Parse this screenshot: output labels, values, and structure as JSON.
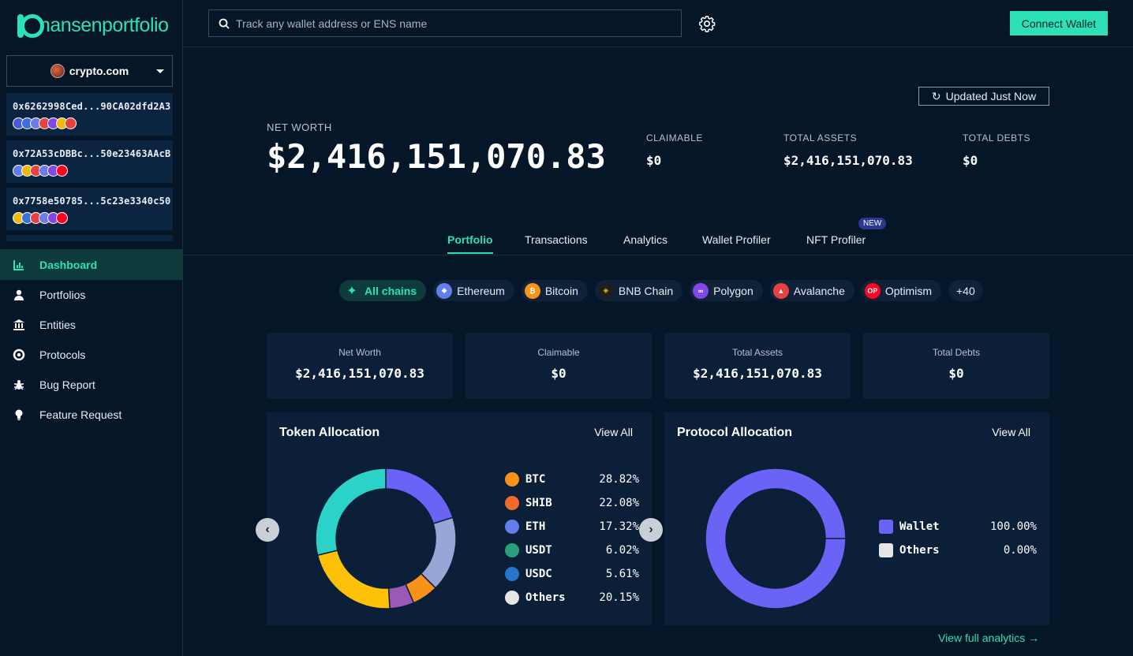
{
  "brand": {
    "name_a": "nansen",
    "name_b": "portfolio"
  },
  "entity": {
    "name": "crypto.com"
  },
  "wallets": [
    {
      "address": "0x6262998Ced...90CA02dfd2A3",
      "chains": [
        "#4a5ad6",
        "#3b6fe0",
        "#6b7be8",
        "#e84142",
        "#8247e5",
        "#f0b90b",
        "#e84142"
      ]
    },
    {
      "address": "0x72A53cDBBc...50e23463AAcB",
      "chains": [
        "#627eea",
        "#f0b90b",
        "#e84142",
        "#6b7be8",
        "#8247e5",
        "#ff0420"
      ]
    },
    {
      "address": "0x7758e50785...5c23e3340c50",
      "chains": [
        "#f0b90b",
        "#3b6fe0",
        "#e84142",
        "#6b7be8",
        "#8247e5",
        "#ff0420"
      ]
    }
  ],
  "nav": [
    {
      "label": "Dashboard",
      "icon": "chart-icon"
    },
    {
      "label": "Portfolios",
      "icon": "user-icon"
    },
    {
      "label": "Entities",
      "icon": "bank-icon"
    },
    {
      "label": "Protocols",
      "icon": "lifebuoy-icon"
    },
    {
      "label": "Bug Report",
      "icon": "bug-icon"
    },
    {
      "label": "Feature Request",
      "icon": "bulb-icon"
    }
  ],
  "search": {
    "placeholder": "Track any wallet address or ENS name"
  },
  "connect_label": "Connect Wallet",
  "updated_label": "Updated Just Now",
  "header": {
    "net_worth_label": "NET WORTH",
    "net_worth": "$2,416,151,070.83",
    "claimable_label": "CLAIMABLE",
    "claimable": "$0",
    "total_assets_label": "TOTAL ASSETS",
    "total_assets": "$2,416,151,070.83",
    "total_debts_label": "TOTAL DEBTS",
    "total_debts": "$0"
  },
  "tabs": [
    "Portfolio",
    "Transactions",
    "Analytics",
    "Wallet Profiler",
    "NFT Profiler"
  ],
  "new_badge": "NEW",
  "chains": [
    {
      "label": "All chains",
      "color": "#2de0b6"
    },
    {
      "label": "Ethereum",
      "color": "#627eea"
    },
    {
      "label": "Bitcoin",
      "color": "#f7931a"
    },
    {
      "label": "BNB Chain",
      "color": "#1e1e1e"
    },
    {
      "label": "Polygon",
      "color": "#8247e5"
    },
    {
      "label": "Avalanche",
      "color": "#e84142"
    },
    {
      "label": "Optimism",
      "color": "#ff0420"
    }
  ],
  "chains_more": "+40",
  "summary": [
    {
      "label": "Net Worth",
      "value": "$2,416,151,070.83"
    },
    {
      "label": "Claimable",
      "value": "$0"
    },
    {
      "label": "Total Assets",
      "value": "$2,416,151,070.83"
    },
    {
      "label": "Total Debts",
      "value": "$0"
    }
  ],
  "token_panel": {
    "title": "Token Allocation",
    "link": "View All"
  },
  "protocol_panel": {
    "title": "Protocol Allocation",
    "link": "View All"
  },
  "view_full": "View full analytics",
  "chart_data": [
    {
      "type": "pie",
      "title": "Token Allocation",
      "categories": [
        "BTC",
        "SHIB",
        "ETH",
        "USDT",
        "USDC",
        "Others"
      ],
      "values": [
        28.82,
        22.08,
        17.32,
        6.02,
        5.61,
        20.15
      ],
      "labels": [
        "28.82%",
        "22.08%",
        "17.32%",
        "6.02%",
        "5.61%",
        "20.15%"
      ],
      "slice_values": [
        20.15,
        17.32,
        6.02,
        5.61,
        22.08,
        28.82
      ],
      "slice_colors": [
        "#6b63f5",
        "#98a6d6",
        "#f7931a",
        "#9b59b6",
        "#ffc107",
        "#2bd2c8"
      ],
      "legend_colors": [
        "#f7931a",
        "#f06a2c",
        "#627eea",
        "#26a17b",
        "#2775ca",
        "#e6e6e6"
      ]
    },
    {
      "type": "pie",
      "title": "Protocol Allocation",
      "categories": [
        "Wallet",
        "Others"
      ],
      "values": [
        100.0,
        0.0
      ],
      "labels": [
        "100.00%",
        "0.00%"
      ],
      "slice_colors": [
        "#6b63f5",
        "#e6e6e6"
      ]
    }
  ]
}
